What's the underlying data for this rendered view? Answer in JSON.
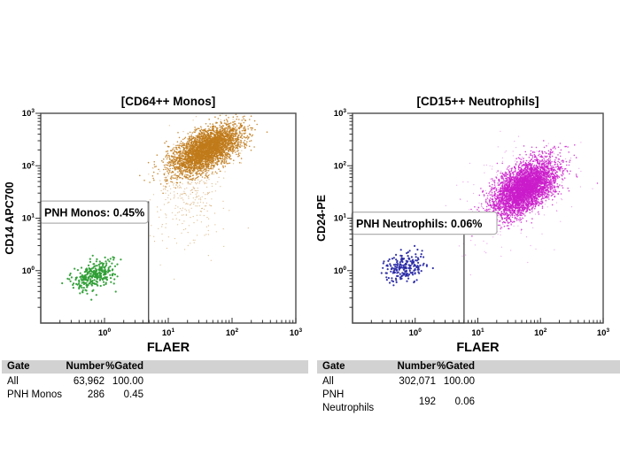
{
  "report": {
    "background": "#ffffff"
  },
  "chart_data": [
    {
      "type": "scatter",
      "title": "[CD64++ Monos]",
      "xlabel": "FLAER",
      "ylabel": "CD14 APC700",
      "x_scale": "log",
      "y_scale": "log",
      "xlim_log": [
        -1,
        3
      ],
      "ylim_log": [
        -1,
        3
      ],
      "x_tick_decades": [
        0,
        1,
        2,
        3
      ],
      "y_tick_decades": [
        0,
        1,
        2,
        3
      ],
      "x_tick_labels": [
        "10⁰",
        "10¹",
        "10²",
        "10³"
      ],
      "y_tick_labels": [
        "10⁰",
        "10¹",
        "10²",
        "10³"
      ],
      "grid": false,
      "gate": {
        "name": "pnh-monos-gate",
        "label": "PNH Monos: 0.45%",
        "x_min_log": -1,
        "x_max_log": 0.69,
        "y_min_log": -1,
        "y_max_log": 1.31,
        "percent_gated": 0.45
      },
      "populations": [
        {
          "name": "cd64-monos-flaer-positive",
          "color": "#c07a1a",
          "center_log": [
            1.6,
            2.31
          ],
          "sigma_log": [
            0.27,
            0.23
          ],
          "rho": 0.6,
          "n_render": 3600,
          "dot_r": 0.8,
          "opacity": 0.85
        },
        {
          "name": "cd64-monos-scatter-tail",
          "color": "#c07a1a",
          "center_log": [
            1.38,
            1.6
          ],
          "sigma_log": [
            0.3,
            0.55
          ],
          "rho": 0.3,
          "n_render": 380,
          "dot_r": 0.6,
          "opacity": 0.5
        },
        {
          "name": "pnh-monos-flaer-negative",
          "color": "#2e9e35",
          "center_log": [
            -0.17,
            -0.08
          ],
          "sigma_log": [
            0.17,
            0.15
          ],
          "rho": 0.35,
          "n_render": 286,
          "dot_r": 1.1,
          "opacity": 0.95
        }
      ]
    },
    {
      "type": "scatter",
      "title": "[CD15++ Neutrophils]",
      "xlabel": "FLAER",
      "ylabel": "CD24-PE",
      "x_scale": "log",
      "y_scale": "log",
      "xlim_log": [
        -1,
        3
      ],
      "ylim_log": [
        -1,
        3
      ],
      "x_tick_decades": [
        0,
        1,
        2,
        3
      ],
      "y_tick_decades": [
        0,
        1,
        2,
        3
      ],
      "x_tick_labels": [
        "10⁰",
        "10¹",
        "10²",
        "10³"
      ],
      "y_tick_labels": [
        "10⁰",
        "10¹",
        "10²",
        "10³"
      ],
      "grid": false,
      "gate": {
        "name": "pnh-neutrophils-gate",
        "label": "PNH Neutrophils: 0.06%",
        "x_min_log": -1,
        "x_max_log": 0.78,
        "y_min_log": -1,
        "y_max_log": 1.1,
        "percent_gated": 0.06
      },
      "populations": [
        {
          "name": "cd15-neutrophils-flaer-positive",
          "color": "#ca1bca",
          "center_log": [
            1.74,
            1.57
          ],
          "sigma_log": [
            0.26,
            0.27
          ],
          "rho": 0.55,
          "n_render": 4200,
          "dot_r": 0.8,
          "opacity": 0.8
        },
        {
          "name": "cd15-neutrophils-scatter-tail",
          "color": "#ca1bca",
          "center_log": [
            1.6,
            1.45
          ],
          "sigma_log": [
            0.42,
            0.5
          ],
          "rho": 0.3,
          "n_render": 300,
          "dot_r": 0.6,
          "opacity": 0.4
        },
        {
          "name": "pnh-neutrophils-flaer-negative",
          "color": "#2a2aa6",
          "center_log": [
            -0.18,
            0.06
          ],
          "sigma_log": [
            0.16,
            0.14
          ],
          "rho": 0.3,
          "n_render": 192,
          "dot_r": 1.1,
          "opacity": 0.95
        }
      ]
    }
  ],
  "tables": [
    {
      "headers": [
        "Gate",
        "Number",
        "%Gated"
      ],
      "rows": [
        [
          "All",
          "63,962",
          "100.00"
        ],
        [
          "PNH Monos",
          "286",
          "0.45"
        ]
      ]
    },
    {
      "headers": [
        "Gate",
        "Number",
        "%Gated"
      ],
      "rows": [
        [
          "All",
          "302,071",
          "100.00"
        ],
        [
          "PNH Neutrophils",
          "192",
          "0.06"
        ]
      ]
    }
  ],
  "colors": {
    "monos_positive": "#c07a1a",
    "monos_pnh": "#2e9e35",
    "neutrophils_positive": "#ca1bca",
    "neutrophils_pnh": "#2a2aa6",
    "table_header_bg": "#d2d2d2",
    "axis": "#4d4d4d"
  }
}
